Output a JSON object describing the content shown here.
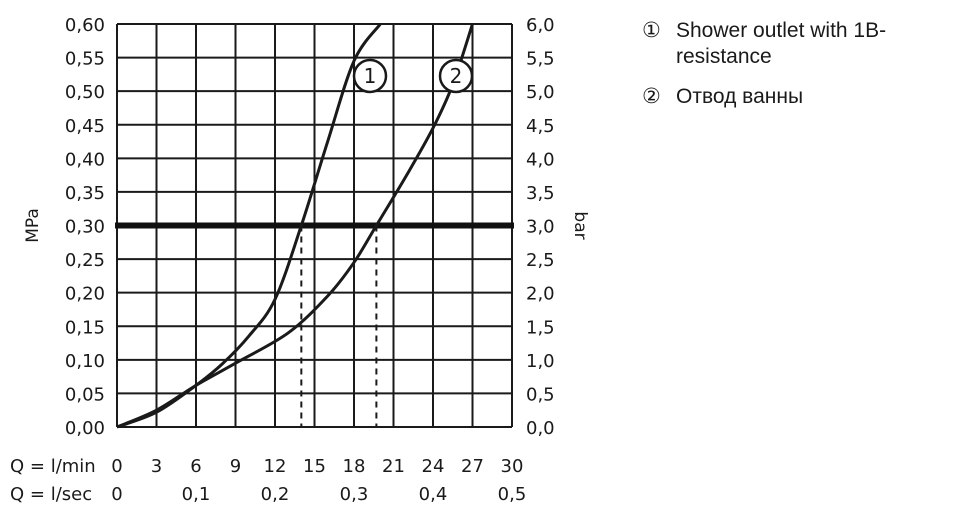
{
  "chart_data": {
    "type": "line",
    "x": {
      "label_lmin": "Q = l/min",
      "label_lsec": "Q = l/sec",
      "ticks_lmin": [
        "0",
        "3",
        "6",
        "9",
        "12",
        "15",
        "18",
        "21",
        "24",
        "27",
        "30"
      ],
      "ticks_lsec": [
        "0",
        "0,1",
        "0,2",
        "0,3",
        "0,4",
        "0,5"
      ],
      "range": [
        0,
        30
      ]
    },
    "y_left": {
      "label": "MPa",
      "ticks": [
        "0,00",
        "0,05",
        "0,10",
        "0,15",
        "0,20",
        "0,25",
        "0,30",
        "0,35",
        "0,40",
        "0,45",
        "0,50",
        "0,55",
        "0,60"
      ],
      "range": [
        0,
        0.6
      ]
    },
    "y_right": {
      "label": "bar",
      "ticks": [
        "0,0",
        "0,5",
        "1,0",
        "1,5",
        "2,0",
        "2,5",
        "3,0",
        "3,5",
        "4,0",
        "4,5",
        "5,0",
        "5,5",
        "6,0"
      ],
      "range": [
        0,
        6
      ]
    },
    "grid": true,
    "reference_line": {
      "y": 0.3,
      "drops": [
        {
          "x": 14.0
        },
        {
          "x": 19.7
        }
      ]
    },
    "series": [
      {
        "marker": "1",
        "color": "#1a1a1a",
        "points": [
          [
            0,
            0
          ],
          [
            3,
            0.022
          ],
          [
            6,
            0.062
          ],
          [
            8,
            0.094
          ],
          [
            10,
            0.135
          ],
          [
            12,
            0.19
          ],
          [
            14,
            0.3
          ],
          [
            16,
            0.425
          ],
          [
            18,
            0.545
          ],
          [
            20,
            0.6
          ]
        ]
      },
      {
        "marker": "2",
        "color": "#1a1a1a",
        "points": [
          [
            0,
            0
          ],
          [
            3,
            0.025
          ],
          [
            6,
            0.062
          ],
          [
            9,
            0.095
          ],
          [
            13,
            0.14
          ],
          [
            16,
            0.195
          ],
          [
            18,
            0.245
          ],
          [
            19.7,
            0.3
          ],
          [
            22,
            0.375
          ],
          [
            24,
            0.445
          ],
          [
            25.5,
            0.51
          ],
          [
            27,
            0.6
          ]
        ]
      }
    ]
  },
  "legend": [
    {
      "marker": "①",
      "text": "Shower outlet with 1B-resistance"
    },
    {
      "marker": "②",
      "text": "Отвод ванны"
    }
  ]
}
